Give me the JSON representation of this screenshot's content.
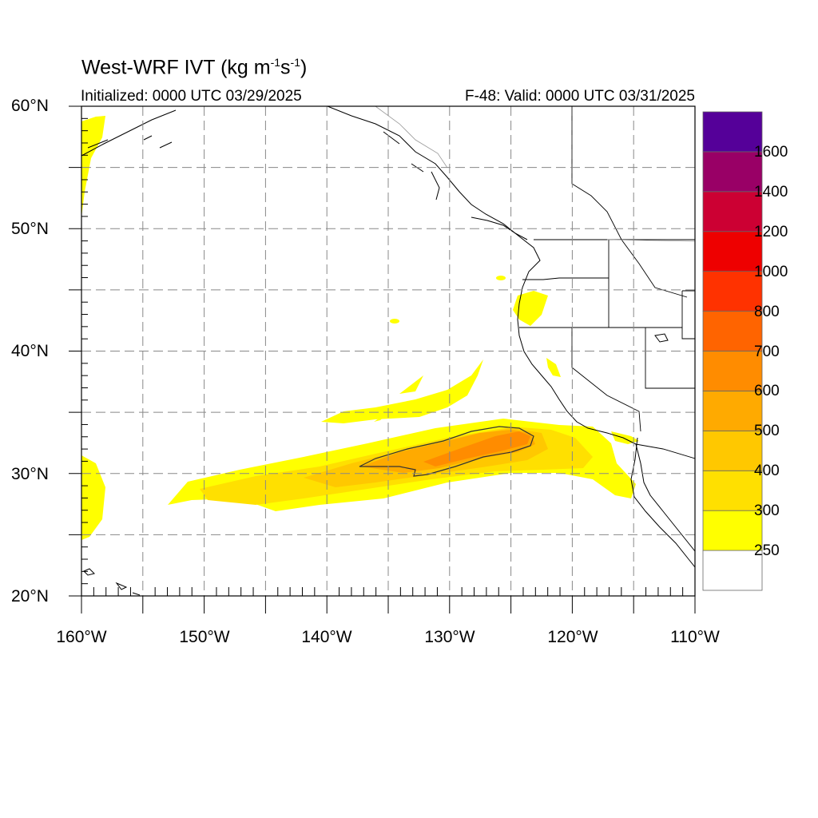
{
  "title": {
    "prefix": "West-WRF IVT (kg m",
    "exp1": "-1",
    "mid": "s",
    "exp2": "-1",
    "suffix": ")"
  },
  "initialized": "Initialized: 0000 UTC 03/29/2025",
  "valid": "F-48: Valid: 0000 UTC 03/31/2025",
  "lat_labels": [
    "60°N",
    "50°N",
    "40°N",
    "30°N",
    "20°N"
  ],
  "lon_labels": [
    "160°W",
    "150°W",
    "140°W",
    "130°W",
    "120°W",
    "110°W"
  ],
  "colorbar": {
    "labels": [
      "250",
      "300",
      "400",
      "500",
      "600",
      "700",
      "800",
      "1000",
      "1200",
      "1400",
      "1600"
    ],
    "colors": [
      "#ffffff",
      "#ffff00",
      "#ffe000",
      "#ffc800",
      "#ffaa00",
      "#ff8c00",
      "#ff6400",
      "#ff3200",
      "#ee0000",
      "#cc0033",
      "#990066",
      "#550099"
    ]
  },
  "map": {
    "lon_range": [
      -160,
      -110
    ],
    "lat_range": [
      20,
      60
    ],
    "ivt_colors": {
      "level1": "#ffff00",
      "level2": "#ffe000",
      "level3": "#ffc800",
      "level4": "#ffaa00",
      "level5": "#ff8c00"
    }
  }
}
